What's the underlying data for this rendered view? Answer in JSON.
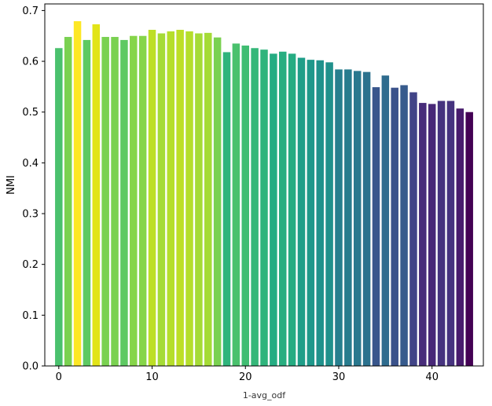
{
  "chart_data": {
    "type": "bar",
    "xlabel": "1-avg_odf",
    "ylabel": "NMI",
    "x": [
      0,
      1,
      2,
      3,
      4,
      5,
      6,
      7,
      8,
      9,
      10,
      11,
      12,
      13,
      14,
      15,
      16,
      17,
      18,
      19,
      20,
      21,
      22,
      23,
      24,
      25,
      26,
      27,
      28,
      29,
      30,
      31,
      32,
      33,
      34,
      35,
      36,
      37,
      38,
      39,
      40,
      41,
      42,
      43,
      44
    ],
    "values": [
      0.626,
      0.648,
      0.679,
      0.642,
      0.673,
      0.648,
      0.648,
      0.642,
      0.65,
      0.65,
      0.662,
      0.655,
      0.659,
      0.662,
      0.659,
      0.655,
      0.656,
      0.647,
      0.618,
      0.635,
      0.631,
      0.626,
      0.623,
      0.615,
      0.619,
      0.615,
      0.607,
      0.603,
      0.602,
      0.598,
      0.584,
      0.584,
      0.581,
      0.579,
      0.549,
      0.572,
      0.548,
      0.553,
      0.539,
      0.518,
      0.516,
      0.522,
      0.522,
      0.507,
      0.5
    ],
    "bar_colors": [
      "#4ac16d",
      "#7ad151",
      "#fde725",
      "#5ec962",
      "#e2e418",
      "#7ad151",
      "#7ad151",
      "#5ec962",
      "#86d549",
      "#86d549",
      "#bddf26",
      "#a5db36",
      "#b5de2b",
      "#bddf26",
      "#b5de2b",
      "#a5db36",
      "#a5db36",
      "#7ad151",
      "#2fb47c",
      "#4ac16d",
      "#40bd72",
      "#35b779",
      "#2fb47c",
      "#25ac82",
      "#28ae80",
      "#25ac82",
      "#1f9e89",
      "#1f988b",
      "#20928c",
      "#21918c",
      "#277f8e",
      "#287c8e",
      "#2a788e",
      "#2c728e",
      "#39568c",
      "#2f6c8e",
      "#3b528b",
      "#375b8d",
      "#414487",
      "#472c7a",
      "#482878",
      "#46337f",
      "#46337f",
      "#481b6d",
      "#440154"
    ],
    "xticks": [
      0,
      10,
      20,
      30,
      40
    ],
    "xtick_labels": [
      "0",
      "10",
      "20",
      "30",
      "40"
    ],
    "yticks": [
      0.0,
      0.1,
      0.2,
      0.3,
      0.4,
      0.5,
      0.6,
      0.7
    ],
    "ytick_labels": [
      "0.0",
      "0.1",
      "0.2",
      "0.3",
      "0.4",
      "0.5",
      "0.6",
      "0.7"
    ],
    "xlim": [
      -1.5,
      45.5
    ],
    "ylim": [
      0,
      0.713
    ],
    "grid": false,
    "legend": "none"
  }
}
